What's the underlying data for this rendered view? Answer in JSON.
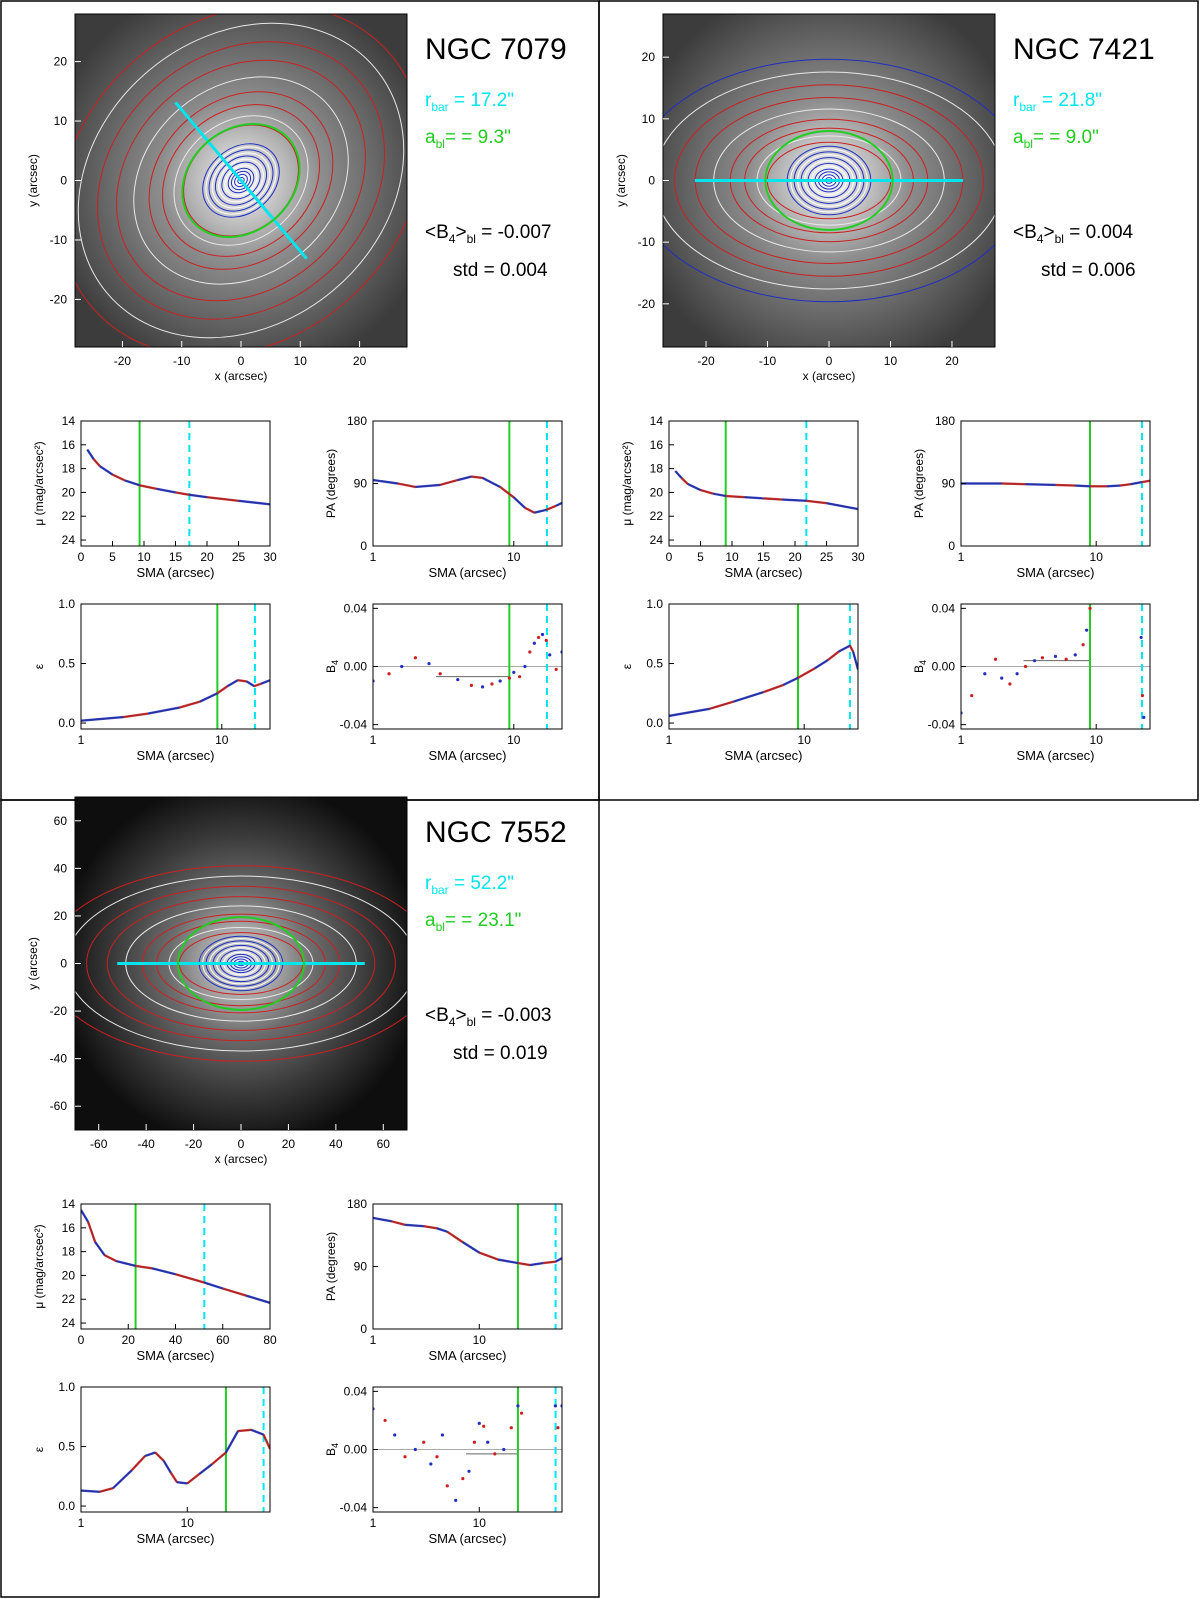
{
  "figure": {
    "panels": [
      {
        "name": "NGC 7079",
        "title": "NGC 7079",
        "rbar_label": "r",
        "rbar_sub": "bar",
        "rbar_value": " = 17.2\"",
        "abl_label": "a",
        "abl_sub": "bl",
        "abl_value": "= =  9.3\"",
        "b4_label": "<B",
        "b4_sub1": "4",
        "b4_mid": ">",
        "b4_sub2": "bl",
        "b4_value": " = -0.007",
        "std_label": "std = ",
        "std_value": "0.004",
        "image": {
          "xlabel": "x (arcsec)",
          "ylabel": "y (arcsec)",
          "xticks": [
            -20,
            -10,
            0,
            10,
            20
          ],
          "yticks": [
            20,
            10,
            0,
            -10,
            -20
          ],
          "xlim": [
            -28,
            28
          ],
          "ylim": [
            -28,
            28
          ],
          "bar_angle_deg": -50,
          "bar_length": 34.4,
          "bl_ellipse": {
            "a": 9.3,
            "b": 7.5,
            "angle_deg": -40
          },
          "contour_ellipticity": 0.22,
          "tone": "gray"
        },
        "mu": {
          "ylabel": "μ (mag/arcsec²)",
          "xlabel": "SMA (arcsec)",
          "xticks": [
            0,
            5,
            10,
            15,
            20,
            25,
            30
          ],
          "yticks": [
            14,
            16,
            18,
            20,
            22,
            24
          ],
          "xlim": [
            0,
            30
          ],
          "ylim": [
            24.5,
            14
          ],
          "green": 9.3,
          "cyan": 17.2,
          "x": [
            1,
            2,
            3,
            5,
            7,
            9.3,
            12,
            15,
            17.2,
            20,
            25,
            30
          ],
          "y": [
            16.4,
            17.2,
            17.8,
            18.5,
            19.0,
            19.4,
            19.7,
            20.0,
            20.2,
            20.4,
            20.7,
            21.0
          ]
        },
        "pa": {
          "ylabel": "PA (degrees)",
          "xlabel": "SMA (arcsec)",
          "xticks": [
            1,
            10
          ],
          "yticks": [
            0,
            90,
            180
          ],
          "xlim": [
            1,
            22
          ],
          "ylim": [
            0,
            180
          ],
          "log": true,
          "green": 9.3,
          "cyan": 17.2,
          "x": [
            1,
            1.5,
            2,
            3,
            4,
            5,
            6,
            8,
            10,
            12,
            14,
            17,
            20,
            22
          ],
          "y": [
            95,
            90,
            85,
            88,
            95,
            100,
            98,
            85,
            70,
            55,
            48,
            52,
            58,
            62
          ]
        },
        "eps": {
          "ylabel": "ε",
          "xlabel": "SMA (arcsec)",
          "xticks": [
            1,
            10
          ],
          "yticks": [
            0.0,
            0.5,
            1.0
          ],
          "ytick_labels": [
            "0.0",
            "0.5",
            "1.0"
          ],
          "xlim": [
            1,
            22
          ],
          "ylim": [
            -0.05,
            1.0
          ],
          "log": true,
          "green": 9.3,
          "cyan": 17.2,
          "x": [
            1,
            2,
            3,
            5,
            7,
            9.3,
            11,
            13,
            15,
            17,
            19,
            22
          ],
          "y": [
            0.02,
            0.05,
            0.08,
            0.13,
            0.18,
            0.25,
            0.31,
            0.36,
            0.35,
            0.31,
            0.33,
            0.36
          ]
        },
        "b4": {
          "ylabel": "B",
          "ylabel_sub": "4",
          "xlabel": "SMA (arcsec)",
          "xticks": [
            1,
            10
          ],
          "yticks": [
            0.04,
            0.0,
            -0.04
          ],
          "ytick_labels": [
            "0.04",
            "0.00",
            "-0.04"
          ],
          "xlim": [
            1,
            22
          ],
          "ylim": [
            -0.043,
            0.043
          ],
          "log": true,
          "green": 9.3,
          "cyan": 17.2,
          "mean_line": {
            "x0": 2.8,
            "x1": 9.3,
            "y": -0.007
          },
          "x": [
            1,
            1.3,
            1.6,
            2,
            2.5,
            3,
            4,
            5,
            6,
            7,
            8,
            9.3,
            10,
            11,
            12,
            13,
            14,
            15,
            16,
            17,
            18,
            20,
            22
          ],
          "y": [
            -0.01,
            -0.005,
            0.0,
            0.006,
            0.002,
            -0.005,
            -0.009,
            -0.013,
            -0.014,
            -0.012,
            -0.01,
            -0.008,
            -0.004,
            -0.007,
            0.0,
            0.01,
            0.016,
            0.02,
            0.022,
            0.018,
            0.008,
            -0.002,
            0.01
          ]
        }
      },
      {
        "name": "NGC 7421",
        "title": "NGC 7421",
        "rbar_label": "r",
        "rbar_sub": "bar",
        "rbar_value": " = 21.8\"",
        "abl_label": "a",
        "abl_sub": "bl",
        "abl_value": "= =  9.0\"",
        "b4_label": "<B",
        "b4_sub1": "4",
        "b4_mid": ">",
        "b4_sub2": "bl",
        "b4_value": " =  0.004",
        "std_label": "std = ",
        "std_value": "0.006",
        "image": {
          "xlabel": "x (arcsec)",
          "ylabel": "y (arcsec)",
          "xticks": [
            -20,
            -10,
            0,
            10,
            20
          ],
          "yticks": [
            20,
            10,
            0,
            -10,
            -20
          ],
          "xlim": [
            -27,
            27
          ],
          "ylim": [
            -27,
            27
          ],
          "bar_angle_deg": 0,
          "bar_length": 43.6,
          "bl_ellipse": {
            "a": 9.0,
            "b": 7.0,
            "angle_deg": 0
          },
          "contour_ellipticity": 0.18,
          "tone": "gray"
        },
        "mu": {
          "ylabel": "μ (mag/arcsec²)",
          "xlabel": "SMA (arcsec)",
          "xticks": [
            0,
            5,
            10,
            15,
            20,
            25,
            30
          ],
          "yticks": [
            14,
            16,
            18,
            20,
            22,
            24
          ],
          "xlim": [
            0,
            30
          ],
          "ylim": [
            24.5,
            14
          ],
          "green": 9.0,
          "cyan": 21.8,
          "x": [
            1,
            2,
            3,
            5,
            7,
            9,
            12,
            15,
            18,
            21.8,
            25,
            30
          ],
          "y": [
            18.2,
            18.8,
            19.3,
            19.8,
            20.1,
            20.3,
            20.4,
            20.5,
            20.6,
            20.7,
            20.9,
            21.4
          ]
        },
        "pa": {
          "ylabel": "PA (degrees)",
          "xlabel": "SMA (arcsec)",
          "xticks": [
            1,
            10
          ],
          "yticks": [
            0,
            90,
            180
          ],
          "xlim": [
            1,
            25
          ],
          "ylim": [
            0,
            180
          ],
          "log": true,
          "green": 9.0,
          "cyan": 21.8,
          "x": [
            1,
            2,
            3,
            5,
            7,
            9,
            12,
            15,
            18,
            21.8,
            25
          ],
          "y": [
            90,
            90,
            89,
            88,
            87,
            86,
            86,
            87,
            89,
            92,
            94
          ]
        },
        "eps": {
          "ylabel": "ε",
          "xlabel": "SMA (arcsec)",
          "xticks": [
            1,
            10
          ],
          "yticks": [
            0.0,
            0.5,
            1.0
          ],
          "ytick_labels": [
            "0.0",
            "0.5",
            "1.0"
          ],
          "xlim": [
            1,
            25
          ],
          "ylim": [
            -0.05,
            1.0
          ],
          "log": true,
          "green": 9.0,
          "cyan": 21.8,
          "x": [
            1,
            2,
            3,
            5,
            7,
            9,
            12,
            15,
            18,
            21.8,
            23,
            25
          ],
          "y": [
            0.06,
            0.12,
            0.18,
            0.26,
            0.32,
            0.38,
            0.46,
            0.53,
            0.6,
            0.65,
            0.6,
            0.45
          ]
        },
        "b4": {
          "ylabel": "B",
          "ylabel_sub": "4",
          "xlabel": "SMA (arcsec)",
          "xticks": [
            1,
            10
          ],
          "yticks": [
            0.04,
            0.0,
            -0.04
          ],
          "ytick_labels": [
            "0.04",
            "0.00",
            "-0.04"
          ],
          "xlim": [
            1,
            25
          ],
          "ylim": [
            -0.043,
            0.043
          ],
          "log": true,
          "green": 9.0,
          "cyan": 21.8,
          "mean_line": {
            "x0": 2.9,
            "x1": 9.0,
            "y": 0.004
          },
          "x": [
            1,
            1.2,
            1.5,
            1.8,
            2,
            2.3,
            2.6,
            3,
            3.5,
            4,
            5,
            6,
            7,
            8,
            8.5,
            9,
            21.5,
            22,
            22.5
          ],
          "y": [
            -0.032,
            -0.02,
            -0.005,
            0.005,
            -0.008,
            -0.012,
            -0.005,
            0.0,
            0.004,
            0.006,
            0.007,
            0.005,
            0.008,
            0.015,
            0.025,
            0.04,
            0.02,
            -0.02,
            -0.035
          ]
        }
      },
      {
        "name": "NGC 7552",
        "title": "NGC 7552",
        "rbar_label": "r",
        "rbar_sub": "bar",
        "rbar_value": " = 52.2\"",
        "abl_label": "a",
        "abl_sub": "bl",
        "abl_value": "= = 23.1\"",
        "b4_label": "<B",
        "b4_sub1": "4",
        "b4_mid": ">",
        "b4_sub2": "bl",
        "b4_value": " = -0.003",
        "std_label": "std = ",
        "std_value": "0.019",
        "image": {
          "xlabel": "x (arcsec)",
          "ylabel": "y (arcsec)",
          "xticks": [
            -60,
            -40,
            -20,
            0,
            20,
            40,
            60
          ],
          "yticks": [
            60,
            40,
            20,
            0,
            -20,
            -40,
            -60
          ],
          "xlim": [
            -70,
            70
          ],
          "ylim": [
            -70,
            70
          ],
          "bar_angle_deg": 0,
          "bar_length": 104.4,
          "bl_ellipse": {
            "a": 23.1,
            "b": 17.0,
            "angle_deg": 0
          },
          "contour_ellipticity": 0.35,
          "tone": "dark"
        },
        "mu": {
          "ylabel": "μ (mag/arcsec²)",
          "xlabel": "SMA (arcsec)",
          "xticks": [
            0,
            20,
            40,
            60,
            80
          ],
          "yticks": [
            14,
            16,
            18,
            20,
            22,
            24
          ],
          "xlim": [
            0,
            80
          ],
          "ylim": [
            24.5,
            14
          ],
          "green": 23.1,
          "cyan": 52.2,
          "x": [
            0,
            3,
            6,
            10,
            15,
            23.1,
            30,
            40,
            52.2,
            60,
            70,
            80
          ],
          "y": [
            14.5,
            15.5,
            17.2,
            18.3,
            18.8,
            19.2,
            19.4,
            19.9,
            20.6,
            21.1,
            21.7,
            22.3
          ]
        },
        "pa": {
          "ylabel": "PA (degrees)",
          "xlabel": "SMA (arcsec)",
          "xticks": [
            1,
            10
          ],
          "yticks": [
            0,
            90,
            180
          ],
          "xlim": [
            1,
            60
          ],
          "ylim": [
            0,
            180
          ],
          "log": true,
          "green": 23.1,
          "cyan": 52.2,
          "x": [
            1,
            1.5,
            2,
            3,
            4,
            5,
            7,
            10,
            15,
            23.1,
            30,
            40,
            52.2,
            60
          ],
          "y": [
            160,
            155,
            150,
            148,
            145,
            140,
            125,
            110,
            100,
            95,
            92,
            95,
            97,
            102
          ]
        },
        "eps": {
          "ylabel": "ε",
          "xlabel": "SMA (arcsec)",
          "xticks": [
            1,
            10
          ],
          "yticks": [
            0.0,
            0.5,
            1.0
          ],
          "ytick_labels": [
            "0.0",
            "0.5",
            "1.0"
          ],
          "xlim": [
            1,
            60
          ],
          "ylim": [
            -0.05,
            1.0
          ],
          "log": true,
          "green": 23.1,
          "cyan": 52.2,
          "x": [
            1,
            1.5,
            2,
            3,
            4,
            5,
            6,
            7,
            8,
            10,
            13,
            17,
            23.1,
            30,
            40,
            52.2,
            60
          ],
          "y": [
            0.13,
            0.12,
            0.15,
            0.3,
            0.42,
            0.45,
            0.38,
            0.28,
            0.2,
            0.19,
            0.27,
            0.35,
            0.45,
            0.63,
            0.64,
            0.6,
            0.48
          ]
        },
        "b4": {
          "ylabel": "B",
          "ylabel_sub": "4",
          "xlabel": "SMA (arcsec)",
          "xticks": [
            1,
            10
          ],
          "yticks": [
            0.04,
            0.0,
            -0.04
          ],
          "ytick_labels": [
            "0.04",
            "0.00",
            "-0.04"
          ],
          "xlim": [
            1,
            60
          ],
          "ylim": [
            -0.043,
            0.043
          ],
          "log": true,
          "green": 23.1,
          "cyan": 52.2,
          "mean_line": {
            "x0": 7.5,
            "x1": 23.1,
            "y": -0.003
          },
          "x": [
            1,
            1.3,
            1.6,
            2,
            2.5,
            3,
            3.5,
            4,
            4.5,
            5,
            6,
            7,
            8,
            9,
            10,
            11,
            12,
            14,
            17,
            20,
            23.1,
            25,
            52,
            55,
            60
          ],
          "y": [
            0.028,
            0.02,
            0.01,
            -0.005,
            0.0,
            0.005,
            -0.01,
            -0.005,
            0.01,
            -0.025,
            -0.035,
            -0.02,
            -0.015,
            0.005,
            0.018,
            0.016,
            0.005,
            -0.003,
            0.0,
            0.015,
            0.03,
            0.025,
            0.03,
            0.015,
            0.03
          ]
        }
      }
    ]
  }
}
